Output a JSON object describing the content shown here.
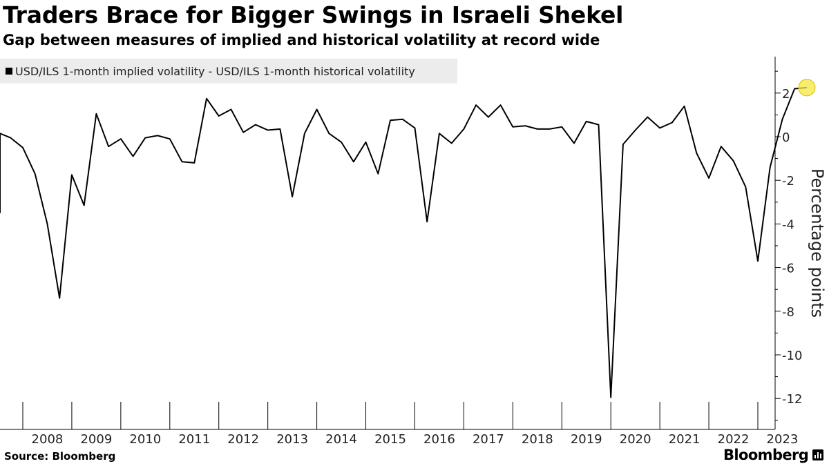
{
  "header": {
    "title": "Traders Brace for Bigger Swings in Israeli Shekel",
    "subtitle": "Gap between measures of implied and historical volatility at record wide"
  },
  "legend": {
    "label": "USD/ILS 1-month implied volatility  - USD/ILS 1-month historical volatility"
  },
  "footer": {
    "source": "Source: Bloomberg",
    "brand": "Bloomberg"
  },
  "colors": {
    "line": "#000000",
    "highlight": "#f5e642",
    "legend_bg": "#ececec"
  },
  "chart_data": {
    "type": "line",
    "title": "Traders Brace for Bigger Swings in Israeli Shekel",
    "subtitle": "Gap between measures of implied and historical volatility at record wide",
    "ylabel": "Percentage points",
    "xlabel": "",
    "ylim": [
      -13,
      3.5
    ],
    "xlim": [
      2007.25,
      2024.1
    ],
    "yticks": [
      2,
      0,
      -2,
      -4,
      -6,
      -8,
      -10,
      -12
    ],
    "ytick_labels": [
      "2",
      "0",
      "-2",
      "-4",
      "-6",
      "-8",
      "-10",
      "-12"
    ],
    "xtick_labels": [
      "2008",
      "2009",
      "2010",
      "2011",
      "2012",
      "2013",
      "2014",
      "2015",
      "2016",
      "2017",
      "2018",
      "2019",
      "2020",
      "2021",
      "2022",
      "2023"
    ],
    "y_axis_position": "right",
    "grid": false,
    "legend_position": "top-left",
    "highlight_last_point": true,
    "series": [
      {
        "name": "USD/ILS 1-month implied volatility  - USD/ILS 1-month historical volatility",
        "x": [
          2007.25,
          2007.5,
          2007.75,
          2008.0,
          2008.25,
          2008.5,
          2008.75,
          2009.0,
          2009.25,
          2009.5,
          2009.75,
          2010.0,
          2010.25,
          2010.5,
          2010.75,
          2011.0,
          2011.25,
          2011.5,
          2011.75,
          2012.0,
          2012.25,
          2012.5,
          2012.75,
          2013.0,
          2013.25,
          2013.5,
          2013.75,
          2014.0,
          2014.25,
          2014.5,
          2014.75,
          2015.0,
          2015.25,
          2015.5,
          2015.75,
          2016.0,
          2016.25,
          2016.5,
          2016.75,
          2017.0,
          2017.25,
          2017.5,
          2017.75,
          2018.0,
          2018.25,
          2018.5,
          2018.75,
          2019.0,
          2019.25,
          2019.5,
          2019.75,
          2020.0,
          2020.25,
          2020.5,
          2020.75,
          2021.0,
          2021.25,
          2021.5,
          2021.75,
          2022.0,
          2022.25,
          2022.5,
          2022.75,
          2023.0,
          2023.25,
          2023.5,
          2023.75,
          2024.0
        ],
        "values": [
          -3.5,
          0.15,
          -0.05,
          -0.5,
          -1.7,
          -4.0,
          -7.4,
          -1.75,
          -3.15,
          1.05,
          -0.45,
          -0.1,
          -0.9,
          -0.05,
          0.05,
          -0.1,
          -1.15,
          -1.2,
          1.75,
          0.95,
          1.25,
          0.2,
          0.55,
          0.3,
          0.35,
          -2.75,
          0.15,
          1.25,
          0.15,
          -0.25,
          -1.15,
          -0.25,
          -1.7,
          0.75,
          0.8,
          0.4,
          -3.9,
          0.15,
          -0.3,
          0.35,
          1.45,
          0.9,
          1.45,
          0.45,
          0.5,
          0.35,
          0.35,
          0.45,
          -0.3,
          0.7,
          0.55,
          -11.95,
          -0.35,
          0.3,
          0.9,
          0.4,
          0.65,
          1.4,
          -0.75,
          -1.9,
          -0.45,
          -1.1,
          -2.3,
          -5.7,
          -1.4,
          0.8,
          2.2,
          2.25
        ]
      }
    ]
  }
}
